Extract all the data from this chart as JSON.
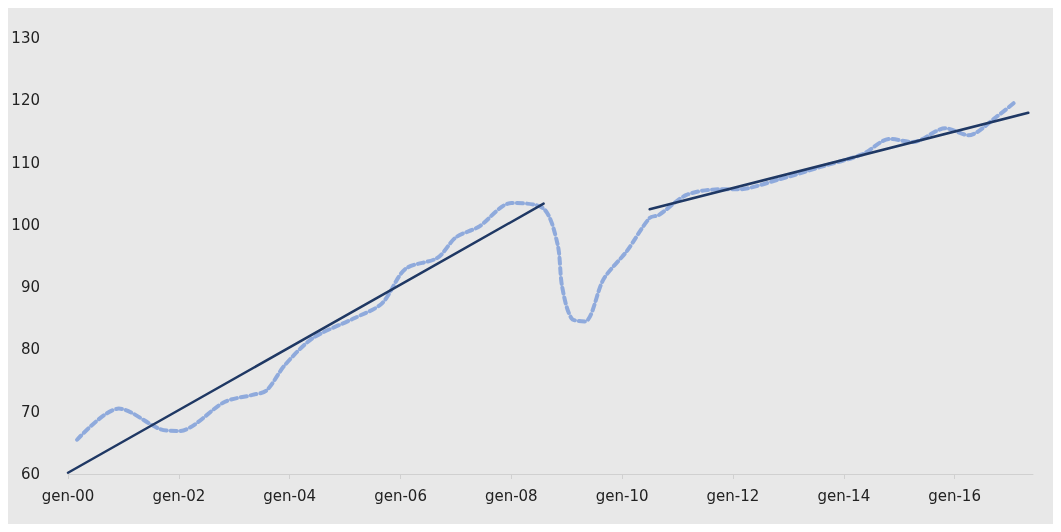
{
  "chart_data": {
    "type": "line",
    "grid": false,
    "marker": "none",
    "xlim": [
      "2000-01",
      "2017-06"
    ],
    "xticks": [
      {
        "value": "2000-01",
        "label": "gen-00"
      },
      {
        "value": "2002-01",
        "label": "gen-02"
      },
      {
        "value": "2004-01",
        "label": "gen-04"
      },
      {
        "value": "2006-01",
        "label": "gen-06"
      },
      {
        "value": "2008-01",
        "label": "gen-08"
      },
      {
        "value": "2010-01",
        "label": "gen-10"
      },
      {
        "value": "2012-01",
        "label": "gen-12"
      },
      {
        "value": "2014-01",
        "label": "gen-14"
      },
      {
        "value": "2016-01",
        "label": "gen-16"
      }
    ],
    "ylim": [
      60,
      130
    ],
    "yticks": [
      60,
      70,
      80,
      90,
      100,
      110,
      120,
      130
    ],
    "series": [
      {
        "color": "#8faadc",
        "line_style": "dashed",
        "x": [
          "2000-03",
          "2000-12",
          "2001-09",
          "2002-01",
          "2002-11",
          "2003-05",
          "2003-08",
          "2003-12",
          "2004-06",
          "2005-03",
          "2005-09",
          "2006-02",
          "2006-09",
          "2007-01",
          "2007-06",
          "2008-01",
          "2008-08",
          "2008-11",
          "2008-12",
          "2009-02",
          "2009-05",
          "2009-09",
          "2010-02",
          "2010-07",
          "2010-09",
          "2011-03",
          "2011-10",
          "2012-02",
          "2012-11",
          "2013-08",
          "2014-05",
          "2014-11",
          "2015-04",
          "2015-11",
          "2016-04",
          "2016-10",
          "2017-02"
        ],
        "values": [
          65.5,
          70.5,
          67.2,
          66.9,
          71.6,
          72.7,
          73.4,
          77.5,
          81.8,
          85,
          87.4,
          92.9,
          94.7,
          98,
          99.7,
          103.5,
          102.6,
          96.9,
          90.1,
          85,
          84.5,
          91.3,
          95.8,
          101.1,
          101.6,
          104.8,
          105.7,
          105.7,
          107.3,
          109.3,
          111.3,
          113.8,
          113.3,
          115.5,
          114.4,
          117.3,
          119.7
        ]
      },
      {
        "color": "#1f3864",
        "line_style": "solid",
        "x": [
          "2000-01",
          "2008-08"
        ],
        "values": [
          60.2,
          103.4
        ]
      },
      {
        "color": "#1f3864",
        "line_style": "solid",
        "x": [
          "2010-07",
          "2017-05"
        ],
        "values": [
          102.5,
          118
        ]
      }
    ]
  }
}
